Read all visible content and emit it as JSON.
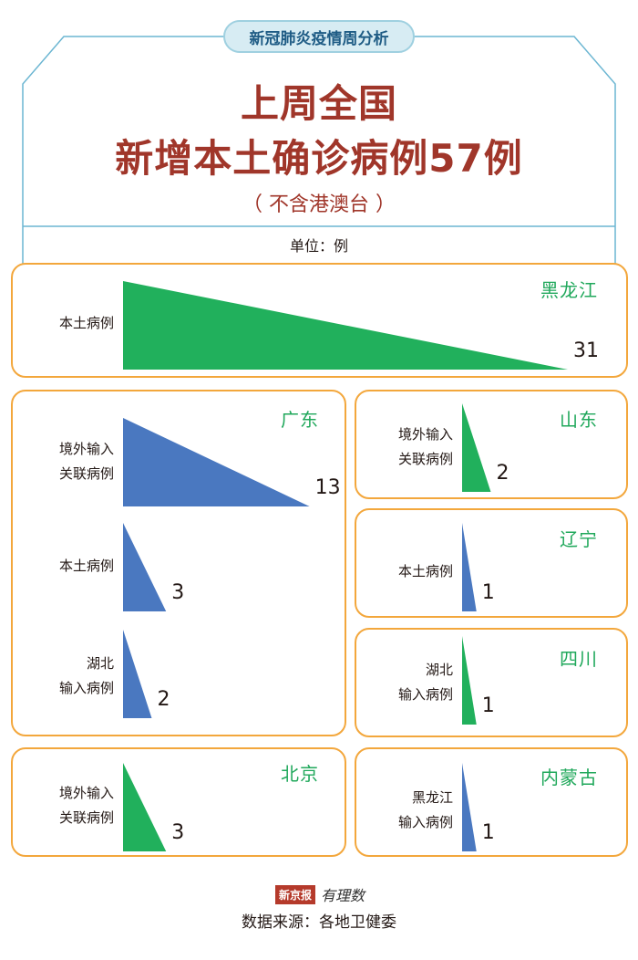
{
  "header": {
    "badge": "新冠肺炎疫情周分析",
    "title_line1": "上周全国",
    "title_line2": "新增本土确诊病例57例",
    "subtitle": "（ 不含港澳台 ）",
    "unit": "单位：例"
  },
  "colors": {
    "green": "#21b05c",
    "blue": "#4a78c0",
    "panel_border": "#f3a73c",
    "header_frame": "#6cb6d2",
    "title": "#a0362a"
  },
  "chart_data": {
    "type": "bar",
    "shape": "triangle",
    "panels": [
      {
        "province": "黑龙江",
        "bars": [
          {
            "category": "本土病例",
            "value": 31,
            "color": "green"
          }
        ]
      },
      {
        "province": "广东",
        "bars": [
          {
            "category": "境外输入关联病例",
            "category_lines": [
              "境外输入",
              "关联病例"
            ],
            "value": 13,
            "color": "blue"
          },
          {
            "category": "本土病例",
            "category_lines": [
              "本土病例"
            ],
            "value": 3,
            "color": "blue"
          },
          {
            "category": "湖北输入病例",
            "category_lines": [
              "湖北",
              "输入病例"
            ],
            "value": 2,
            "color": "blue"
          }
        ]
      },
      {
        "province": "山东",
        "bars": [
          {
            "category": "境外输入关联病例",
            "category_lines": [
              "境外输入",
              "关联病例"
            ],
            "value": 2,
            "color": "green"
          }
        ]
      },
      {
        "province": "辽宁",
        "bars": [
          {
            "category": "本土病例",
            "category_lines": [
              "本土病例"
            ],
            "value": 1,
            "color": "blue"
          }
        ]
      },
      {
        "province": "四川",
        "bars": [
          {
            "category": "湖北输入病例",
            "category_lines": [
              "湖北",
              "输入病例"
            ],
            "value": 1,
            "color": "green"
          }
        ]
      },
      {
        "province": "北京",
        "bars": [
          {
            "category": "境外输入关联病例",
            "category_lines": [
              "境外输入",
              "关联病例"
            ],
            "value": 3,
            "color": "green"
          }
        ]
      },
      {
        "province": "内蒙古",
        "bars": [
          {
            "category": "黑龙江输入病例",
            "category_lines": [
              "黑龙江",
              "输入病例"
            ],
            "value": 1,
            "color": "blue"
          }
        ]
      }
    ]
  },
  "footer": {
    "logo_box": "新京报",
    "logo_text": "有理数",
    "source": "数据来源：各地卫健委"
  }
}
